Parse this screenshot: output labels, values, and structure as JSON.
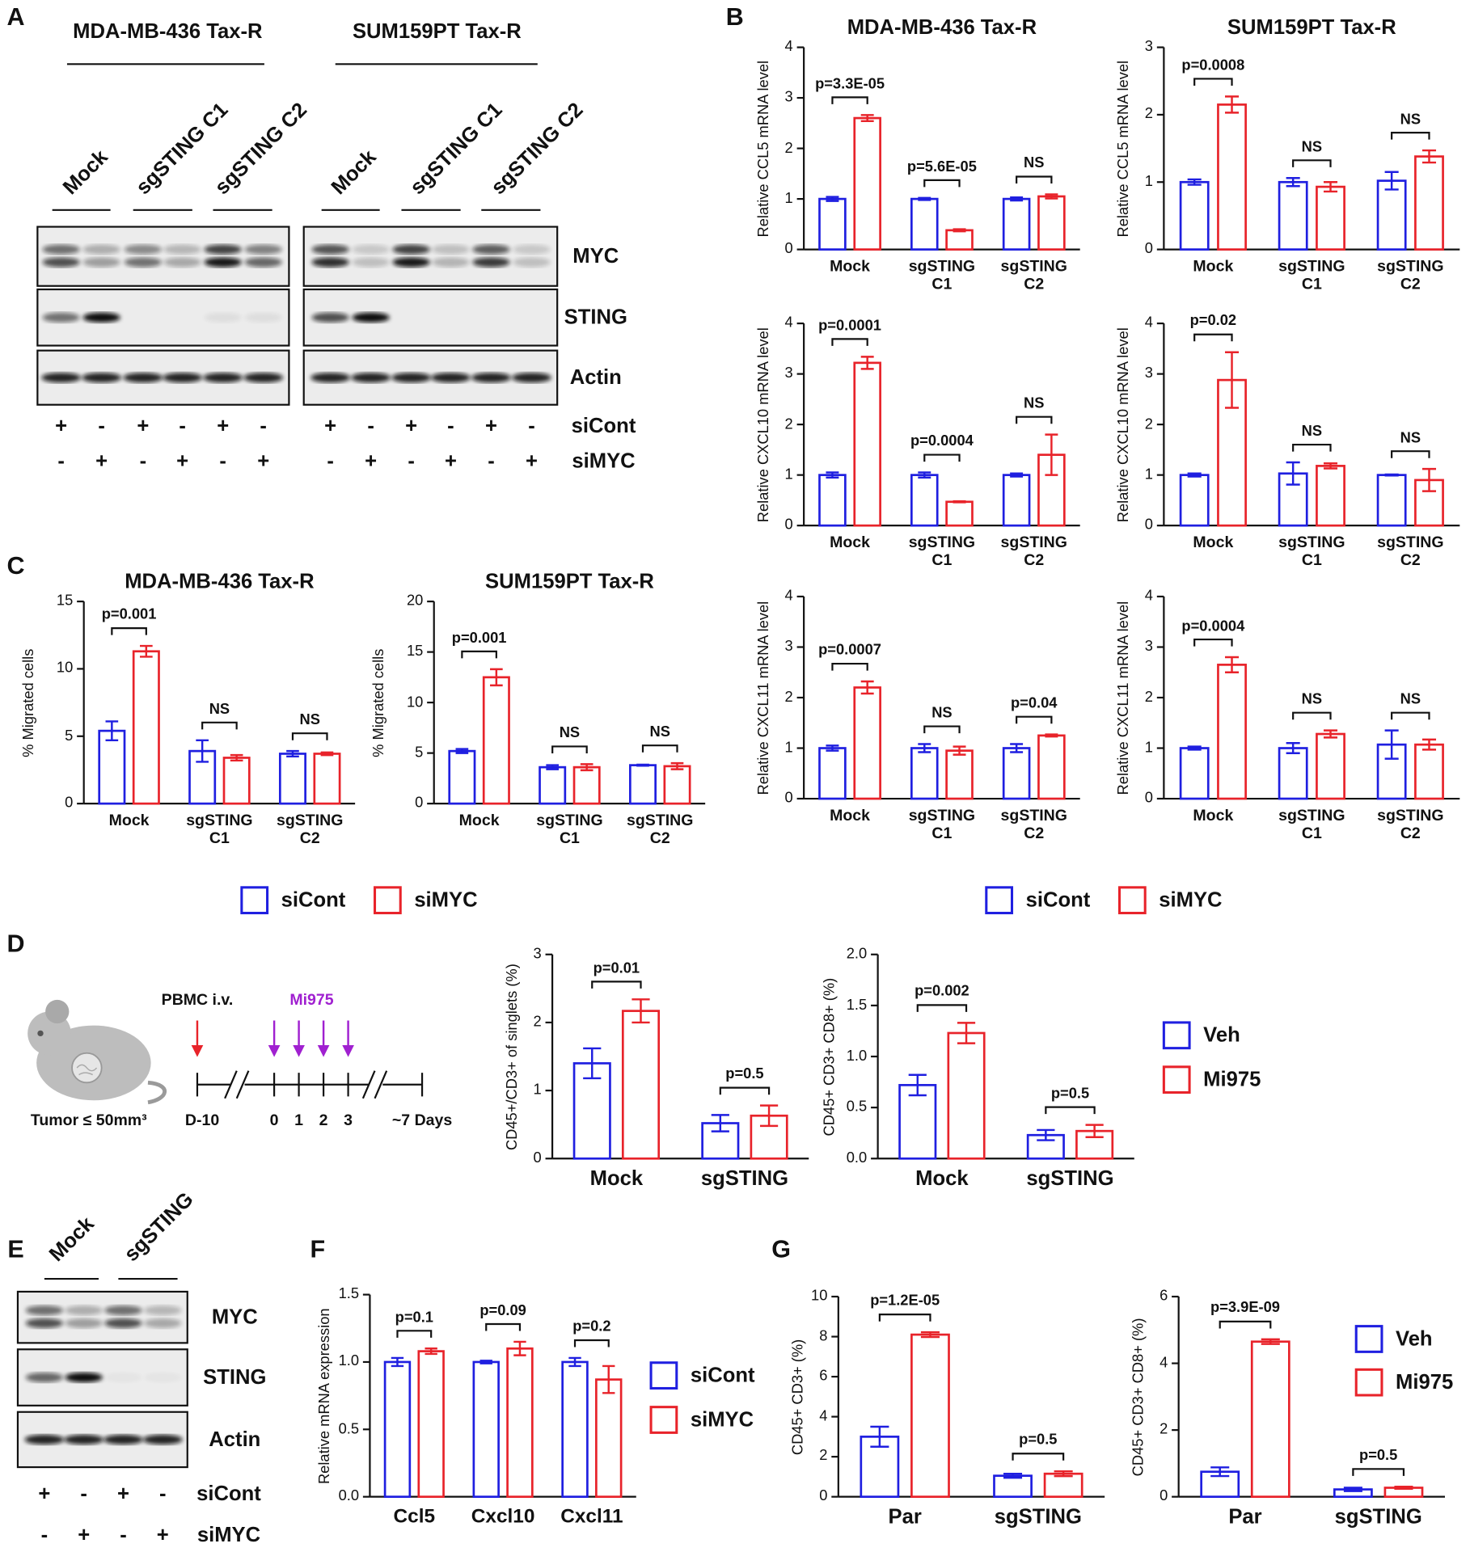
{
  "panel_labels": [
    "A",
    "B",
    "C",
    "D",
    "E",
    "F",
    "G"
  ],
  "blot_a": {
    "titles": [
      "MDA-MB-436 Tax-R",
      "SUM159PT Tax-R"
    ],
    "lanes": [
      "Mock",
      "sgSTING C1",
      "sgSTING C2",
      "Mock",
      "sgSTING C1",
      "sgSTING C2"
    ],
    "bands": [
      "MYC",
      "STING",
      "Actin"
    ],
    "rows": [
      {
        "label": "siCont",
        "signs": [
          "+",
          "-",
          "+",
          "-",
          "+",
          "-",
          "+",
          "-",
          "+",
          "-",
          "+",
          "-"
        ]
      },
      {
        "label": "siMYC",
        "signs": [
          "-",
          "+",
          "-",
          "+",
          "-",
          "+",
          "-",
          "+",
          "-",
          "+",
          "-",
          "+"
        ]
      }
    ]
  },
  "schematic_d": {
    "injection": "PBMC i.v.",
    "drug": "Mi975",
    "tumor": "Tumor ≤ 50mm³",
    "timeline": [
      "D-10",
      "0",
      "1",
      "2",
      "3",
      "~7 Days"
    ]
  },
  "blot_e": {
    "lanes": [
      "Mock",
      "sgSTING"
    ],
    "bands": [
      "MYC",
      "STING",
      "Actin"
    ],
    "rows": [
      {
        "label": "siCont",
        "signs": [
          "+",
          "-",
          "+",
          "-"
        ]
      },
      {
        "label": "siMYC",
        "signs": [
          "-",
          "+",
          "-",
          "+"
        ]
      }
    ]
  },
  "chart_data": [
    {
      "type": "bar",
      "title": "MDA-MB-436 Tax-R",
      "ylabel": "Relative CCL5 mRNA level",
      "categories": [
        "Mock",
        "sgSTING C1",
        "sgSTING C2"
      ],
      "series": [
        {
          "name": "siCont",
          "color": "#1f1fe0",
          "values": [
            1,
            1,
            1
          ],
          "errors": [
            0.04,
            0.02,
            0.03
          ]
        },
        {
          "name": "siMYC",
          "color": "#e8232a",
          "values": [
            2.6,
            0.38,
            1.05
          ],
          "errors": [
            0.06,
            0.02,
            0.04
          ]
        }
      ],
      "annotations": [
        "p=3.3E-05",
        "p=5.6E-05",
        "NS"
      ],
      "ylim": [
        0,
        4
      ],
      "yticks": [
        0,
        1,
        2,
        3,
        4
      ]
    },
    {
      "type": "bar",
      "title": "SUM159PT Tax-R",
      "ylabel": "Relative CCL5 mRNA level",
      "categories": [
        "Mock",
        "sgSTING C1",
        "sgSTING C2"
      ],
      "series": [
        {
          "name": "siCont",
          "color": "#1f1fe0",
          "values": [
            1,
            1,
            1.02
          ],
          "errors": [
            0.04,
            0.06,
            0.13
          ]
        },
        {
          "name": "siMYC",
          "color": "#e8232a",
          "values": [
            2.15,
            0.93,
            1.38
          ],
          "errors": [
            0.12,
            0.07,
            0.09
          ]
        }
      ],
      "annotations": [
        "p=0.0008",
        "NS",
        "NS"
      ],
      "ylim": [
        0,
        3
      ],
      "yticks": [
        0,
        1,
        2,
        3
      ]
    },
    {
      "type": "bar",
      "ylabel": "Relative CXCL10 mRNA level",
      "categories": [
        "Mock",
        "sgSTING C1",
        "sgSTING C2"
      ],
      "series": [
        {
          "name": "siCont",
          "color": "#1f1fe0",
          "values": [
            1,
            1,
            1
          ],
          "errors": [
            0.05,
            0.05,
            0.03
          ]
        },
        {
          "name": "siMYC",
          "color": "#e8232a",
          "values": [
            3.22,
            0.47,
            1.4
          ],
          "errors": [
            0.12,
            0.01,
            0.4
          ]
        }
      ],
      "annotations": [
        "p=0.0001",
        "p=0.0004",
        "NS"
      ],
      "ylim": [
        0,
        4
      ],
      "yticks": [
        0,
        1,
        2,
        3,
        4
      ]
    },
    {
      "type": "bar",
      "ylabel": "Relative CXCL10 mRNA level",
      "categories": [
        "Mock",
        "sgSTING C1",
        "sgSTING C2"
      ],
      "series": [
        {
          "name": "siCont",
          "color": "#1f1fe0",
          "values": [
            1,
            1.03,
            1
          ],
          "errors": [
            0.03,
            0.22,
            0.01
          ]
        },
        {
          "name": "siMYC",
          "color": "#e8232a",
          "values": [
            2.88,
            1.18,
            0.9
          ],
          "errors": [
            0.55,
            0.05,
            0.22
          ]
        }
      ],
      "annotations": [
        "p=0.02",
        "NS",
        "NS"
      ],
      "ylim": [
        0,
        4
      ],
      "yticks": [
        0,
        1,
        2,
        3,
        4
      ]
    },
    {
      "type": "bar",
      "ylabel": "Relative CXCL11 mRNA level",
      "legend": true,
      "categories": [
        "Mock",
        "sgSTING C1",
        "sgSTING C2"
      ],
      "series": [
        {
          "name": "siCont",
          "color": "#1f1fe0",
          "values": [
            1,
            1,
            1
          ],
          "errors": [
            0.05,
            0.08,
            0.08
          ]
        },
        {
          "name": "siMYC",
          "color": "#e8232a",
          "values": [
            2.2,
            0.95,
            1.25
          ],
          "errors": [
            0.12,
            0.08,
            0.02
          ]
        }
      ],
      "annotations": [
        "p=0.0007",
        "NS",
        "p=0.04"
      ],
      "ylim": [
        0,
        4
      ],
      "yticks": [
        0,
        1,
        2,
        3,
        4
      ]
    },
    {
      "type": "bar",
      "ylabel": "Relative CXCL11 mRNA level",
      "categories": [
        "Mock",
        "sgSTING C1",
        "sgSTING C2"
      ],
      "series": [
        {
          "name": "siCont",
          "color": "#1f1fe0",
          "values": [
            1,
            1,
            1.07
          ],
          "errors": [
            0.03,
            0.1,
            0.28
          ]
        },
        {
          "name": "siMYC",
          "color": "#e8232a",
          "values": [
            2.65,
            1.28,
            1.07
          ],
          "errors": [
            0.15,
            0.07,
            0.1
          ]
        }
      ],
      "annotations": [
        "p=0.0004",
        "NS",
        "NS"
      ],
      "ylim": [
        0,
        4
      ],
      "yticks": [
        0,
        1,
        2,
        3,
        4
      ]
    },
    {
      "type": "bar",
      "title": "MDA-MB-436 Tax-R",
      "ylabel": "% Migrated cells",
      "legend": true,
      "categories": [
        "Mock",
        "sgSTING C1",
        "sgSTING C2"
      ],
      "series": [
        {
          "name": "siCont",
          "color": "#1f1fe0",
          "values": [
            5.4,
            3.9,
            3.7
          ],
          "errors": [
            0.7,
            0.8,
            0.2
          ]
        },
        {
          "name": "siMYC",
          "color": "#e8232a",
          "values": [
            11.3,
            3.4,
            3.7
          ],
          "errors": [
            0.4,
            0.2,
            0.1
          ]
        }
      ],
      "annotations": [
        "p=0.001",
        "NS",
        "NS"
      ],
      "ylim": [
        0,
        15
      ],
      "yticks": [
        0,
        5,
        10,
        15
      ]
    },
    {
      "type": "bar",
      "title": "SUM159PT Tax-R",
      "ylabel": "% Migrated cells",
      "categories": [
        "Mock",
        "sgSTING C1",
        "sgSTING C2"
      ],
      "series": [
        {
          "name": "siCont",
          "color": "#1f1fe0",
          "values": [
            5.2,
            3.6,
            3.8
          ],
          "errors": [
            0.2,
            0.2,
            0.05
          ]
        },
        {
          "name": "siMYC",
          "color": "#e8232a",
          "values": [
            12.5,
            3.6,
            3.7
          ],
          "errors": [
            0.8,
            0.3,
            0.3
          ]
        }
      ],
      "annotations": [
        "p=0.001",
        "NS",
        "NS"
      ],
      "ylim": [
        0,
        20
      ],
      "yticks": [
        0,
        5,
        10,
        15,
        20
      ]
    },
    {
      "type": "bar",
      "ylabel": "CD45+/CD3+ of singlets (%)",
      "categories": [
        "Mock",
        "sgSTING"
      ],
      "series": [
        {
          "name": "Veh",
          "color": "#1f1fe0",
          "values": [
            1.4,
            0.52
          ],
          "errors": [
            0.22,
            0.12
          ]
        },
        {
          "name": "Mi975",
          "color": "#e8232a",
          "values": [
            2.17,
            0.63
          ],
          "errors": [
            0.17,
            0.15
          ]
        }
      ],
      "annotations": [
        "p=0.01",
        "p=0.5"
      ],
      "ylim": [
        0,
        3
      ],
      "yticks": [
        0,
        1,
        2,
        3
      ]
    },
    {
      "type": "bar",
      "ylabel": "CD45+ CD3+ CD8+ (%)",
      "legend": true,
      "categories": [
        "Mock",
        "sgSTING"
      ],
      "series": [
        {
          "name": "Veh",
          "color": "#1f1fe0",
          "values": [
            0.72,
            0.23
          ],
          "errors": [
            0.1,
            0.05
          ]
        },
        {
          "name": "Mi975",
          "color": "#e8232a",
          "values": [
            1.23,
            0.27
          ],
          "errors": [
            0.1,
            0.06
          ]
        }
      ],
      "annotations": [
        "p=0.002",
        "p=0.5"
      ],
      "ylim": [
        0,
        2
      ],
      "yticks": [
        {
          "value": 0,
          "label": "0.0"
        },
        {
          "value": 0.5,
          "label": "0.5"
        },
        {
          "value": 1,
          "label": "1.0"
        },
        {
          "value": 1.5,
          "label": "1.5"
        },
        {
          "value": 2,
          "label": "2.0"
        }
      ]
    },
    {
      "type": "bar",
      "ylabel": "Relative mRNA expression",
      "legend": true,
      "categories": [
        "Ccl5",
        "Cxcl10",
        "Cxcl11"
      ],
      "series": [
        {
          "name": "siCont",
          "color": "#1f1fe0",
          "values": [
            1,
            1,
            1
          ],
          "errors": [
            0.03,
            0.01,
            0.03
          ]
        },
        {
          "name": "siMYC",
          "color": "#e8232a",
          "values": [
            1.08,
            1.1,
            0.87
          ],
          "errors": [
            0.02,
            0.05,
            0.1
          ]
        }
      ],
      "annotations": [
        "p=0.1",
        "p=0.09",
        "p=0.2"
      ],
      "ylim": [
        0,
        1.5
      ],
      "yticks": [
        {
          "value": 0,
          "label": "0.0"
        },
        {
          "value": 0.5,
          "label": "0.5"
        },
        {
          "value": 1,
          "label": "1.0"
        },
        {
          "value": 1.5,
          "label": "1.5"
        }
      ]
    },
    {
      "type": "bar",
      "ylabel": "CD45+ CD3+ (%)",
      "categories": [
        "Par",
        "sgSTING"
      ],
      "series": [
        {
          "name": "Veh",
          "color": "#1f1fe0",
          "values": [
            3.0,
            1.05
          ],
          "errors": [
            0.5,
            0.1
          ]
        },
        {
          "name": "Mi975",
          "color": "#e8232a",
          "values": [
            8.1,
            1.15
          ],
          "errors": [
            0.12,
            0.12
          ]
        }
      ],
      "annotations": [
        "p=1.2E-05",
        "p=0.5"
      ],
      "ylim": [
        0,
        10
      ],
      "yticks": [
        0,
        2,
        4,
        6,
        8,
        10
      ]
    },
    {
      "type": "bar",
      "ylabel": "CD45+ CD3+ CD8+ (%)",
      "legend": true,
      "categories": [
        "Par",
        "sgSTING"
      ],
      "series": [
        {
          "name": "Veh",
          "color": "#1f1fe0",
          "values": [
            0.75,
            0.22
          ],
          "errors": [
            0.13,
            0.05
          ]
        },
        {
          "name": "Mi975",
          "color": "#e8232a",
          "values": [
            4.65,
            0.27
          ],
          "errors": [
            0.07,
            0.03
          ]
        }
      ],
      "annotations": [
        "p=3.9E-09",
        "p=0.5"
      ],
      "ylim": [
        0,
        6
      ],
      "yticks": [
        0,
        2,
        4,
        6
      ]
    }
  ]
}
